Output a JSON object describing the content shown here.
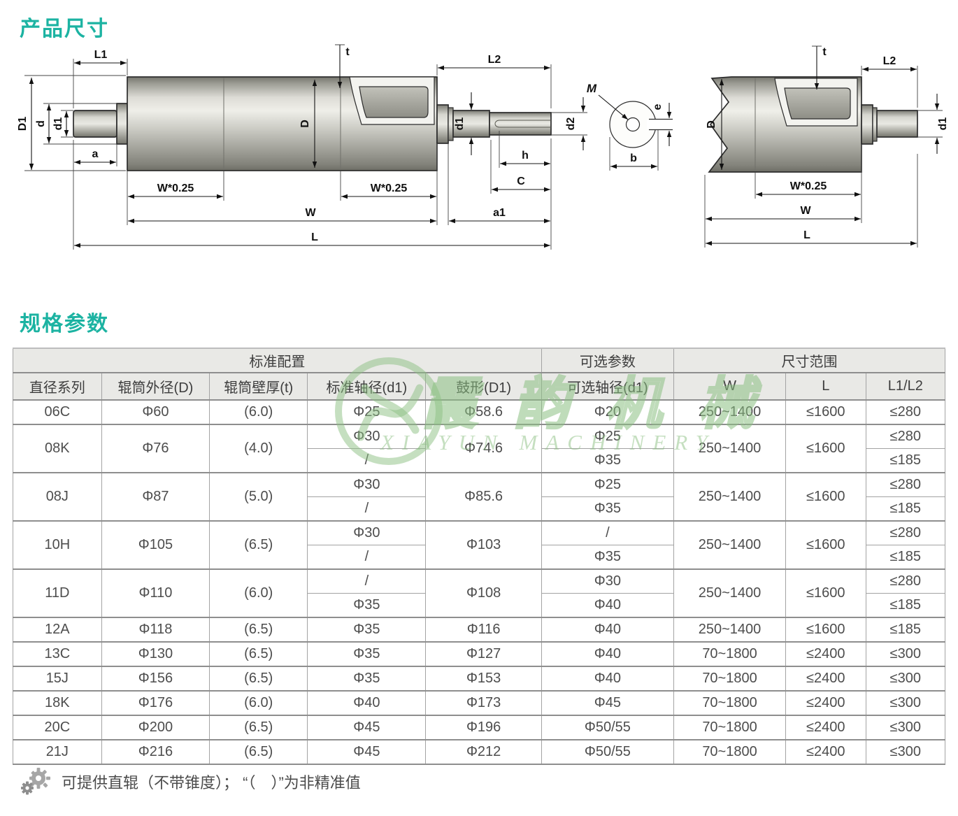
{
  "page": {
    "section1_title": "产品尺寸",
    "section2_title": "规格参数",
    "footnote": "可提供直辊（不带锥度）； “（　）”为非精准值"
  },
  "colors": {
    "accent": "#1cb3a2",
    "watermark_green": "#8bbf82",
    "header_bg": "#e9e9e6"
  },
  "watermark": {
    "cjk": "霞韵机械",
    "latin": "XIAYUN MACHINERY"
  },
  "dims": {
    "L1": "L1",
    "L2": "L2",
    "D1": "D1",
    "D": "D",
    "d": "d",
    "d1": "d1",
    "d2": "d2",
    "a": "a",
    "a1": "a1",
    "t": "t",
    "h": "h",
    "C": "C",
    "W": "W",
    "W025": "W*0.25",
    "L": "L",
    "M": "M",
    "e": "e",
    "b": "b"
  },
  "table": {
    "groups": [
      {
        "label": "标准配置"
      },
      {
        "label": "可选参数"
      },
      {
        "label": "尺寸范围"
      }
    ],
    "columns": [
      "直径系列",
      "辊筒外径(D)",
      "辊筒壁厚(t)",
      "标准轴径(d1)",
      "鼓形(D1)",
      "可选轴径(d1)",
      "W",
      "L",
      "L1/L2"
    ],
    "rows": [
      {
        "series": "06C",
        "outer": "Φ60",
        "wall": "(6.0)",
        "std_axle": [
          "Φ25"
        ],
        "drum": "Φ58.6",
        "opt_axle": [
          "Φ20"
        ],
        "w": "250~1400",
        "l": "≤1600",
        "l1l2": [
          "≤280"
        ]
      },
      {
        "series": "08K",
        "outer": "Φ76",
        "wall": "(4.0)",
        "std_axle": [
          "Φ30",
          "/"
        ],
        "drum": "Φ74.6",
        "opt_axle": [
          "Φ25",
          "Φ35"
        ],
        "w": "250~1400",
        "l": "≤1600",
        "l1l2": [
          "≤280",
          "≤185"
        ]
      },
      {
        "series": "08J",
        "outer": "Φ87",
        "wall": "(5.0)",
        "std_axle": [
          "Φ30",
          "/"
        ],
        "drum": "Φ85.6",
        "opt_axle": [
          "Φ25",
          "Φ35"
        ],
        "w": "250~1400",
        "l": "≤1600",
        "l1l2": [
          "≤280",
          "≤185"
        ]
      },
      {
        "series": "10H",
        "outer": "Φ105",
        "wall": "(6.5)",
        "std_axle": [
          "Φ30",
          "/"
        ],
        "drum": "Φ103",
        "opt_axle": [
          "/",
          "Φ35"
        ],
        "w": "250~1400",
        "l": "≤1600",
        "l1l2": [
          "≤280",
          "≤185"
        ]
      },
      {
        "series": "11D",
        "outer": "Φ110",
        "wall": "(6.0)",
        "std_axle": [
          "/",
          "Φ35"
        ],
        "drum": "Φ108",
        "opt_axle": [
          "Φ30",
          "Φ40"
        ],
        "w": "250~1400",
        "l": "≤1600",
        "l1l2": [
          "≤280",
          "≤185"
        ]
      },
      {
        "series": "12A",
        "outer": "Φ118",
        "wall": "(6.5)",
        "std_axle": [
          "Φ35"
        ],
        "drum": "Φ116",
        "opt_axle": [
          "Φ40"
        ],
        "w": "250~1400",
        "l": "≤1600",
        "l1l2": [
          "≤185"
        ]
      },
      {
        "series": "13C",
        "outer": "Φ130",
        "wall": "(6.5)",
        "std_axle": [
          "Φ35"
        ],
        "drum": "Φ127",
        "opt_axle": [
          "Φ40"
        ],
        "w": "70~1800",
        "l": "≤2400",
        "l1l2": [
          "≤300"
        ]
      },
      {
        "series": "15J",
        "outer": "Φ156",
        "wall": "(6.5)",
        "std_axle": [
          "Φ35"
        ],
        "drum": "Φ153",
        "opt_axle": [
          "Φ40"
        ],
        "w": "70~1800",
        "l": "≤2400",
        "l1l2": [
          "≤300"
        ]
      },
      {
        "series": "18K",
        "outer": "Φ176",
        "wall": "(6.0)",
        "std_axle": [
          "Φ40"
        ],
        "drum": "Φ173",
        "opt_axle": [
          "Φ45"
        ],
        "w": "70~1800",
        "l": "≤2400",
        "l1l2": [
          "≤300"
        ]
      },
      {
        "series": "20C",
        "outer": "Φ200",
        "wall": "(6.5)",
        "std_axle": [
          "Φ45"
        ],
        "drum": "Φ196",
        "opt_axle": [
          "Φ50/55"
        ],
        "w": "70~1800",
        "l": "≤2400",
        "l1l2": [
          "≤300"
        ]
      },
      {
        "series": "21J",
        "outer": "Φ216",
        "wall": "(6.5)",
        "std_axle": [
          "Φ45"
        ],
        "drum": "Φ212",
        "opt_axle": [
          "Φ50/55"
        ],
        "w": "70~1800",
        "l": "≤2400",
        "l1l2": [
          "≤300"
        ]
      }
    ]
  }
}
